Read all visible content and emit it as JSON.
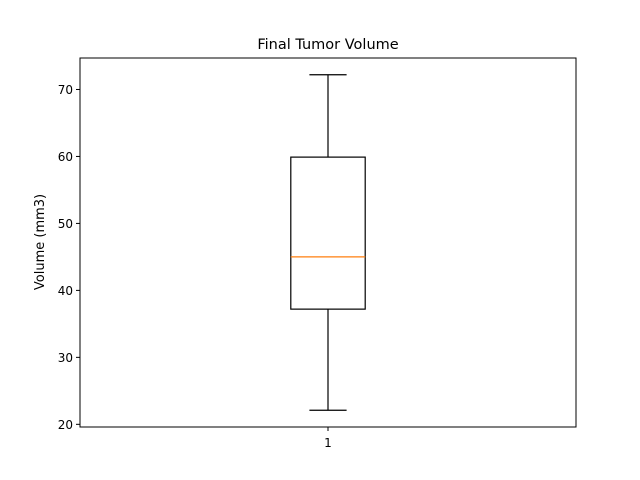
{
  "chart_data": {
    "type": "box",
    "title": "Final Tumor Volume",
    "xlabel": "",
    "ylabel": "Volume (mm3)",
    "categories": [
      "1"
    ],
    "boxes": [
      {
        "category": "1",
        "whisker_low": 22.1,
        "q1": 37.2,
        "median": 45.0,
        "q3": 59.9,
        "whisker_high": 72.2
      }
    ],
    "ylim": [
      19.6,
      74.7
    ],
    "yticks": [
      20,
      30,
      40,
      50,
      60,
      70
    ],
    "xlim": [
      0.5,
      1.5
    ],
    "grid": false,
    "median_color": "#ff7f0e",
    "box_color": "#000000"
  }
}
